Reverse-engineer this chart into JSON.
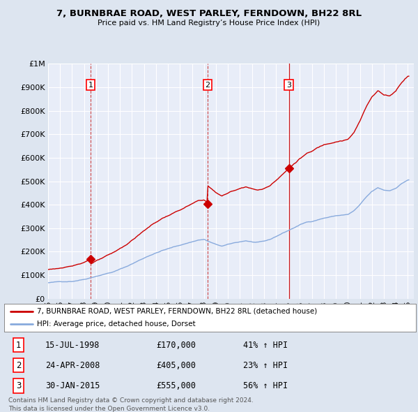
{
  "title": "7, BURNBRAE ROAD, WEST PARLEY, FERNDOWN, BH22 8RL",
  "subtitle": "Price paid vs. HM Land Registry’s House Price Index (HPI)",
  "legend_line1": "7, BURNBRAE ROAD, WEST PARLEY, FERNDOWN, BH22 8RL (detached house)",
  "legend_line2": "HPI: Average price, detached house, Dorset",
  "footer1": "Contains HM Land Registry data © Crown copyright and database right 2024.",
  "footer2": "This data is licensed under the Open Government Licence v3.0.",
  "sale_labels": [
    "1",
    "2",
    "3"
  ],
  "sale_dates": [
    1998.54,
    2008.31,
    2015.08
  ],
  "sale_prices": [
    170000,
    405000,
    555000
  ],
  "sale_info": [
    {
      "num": "1",
      "date": "15-JUL-1998",
      "price": "£170,000",
      "hpi": "41% ↑ HPI"
    },
    {
      "num": "2",
      "date": "24-APR-2008",
      "price": "£405,000",
      "hpi": "23% ↑ HPI"
    },
    {
      "num": "3",
      "date": "30-JAN-2015",
      "price": "£555,000",
      "hpi": "56% ↑ HPI"
    }
  ],
  "background_color": "#dde5f0",
  "plot_bg_color": "#e8edf8",
  "grid_color": "#ffffff",
  "red_color": "#cc0000",
  "blue_color": "#88aadd",
  "dashed_red_color": "#cc3333",
  "xlim": [
    1995.0,
    2025.5
  ],
  "ylim": [
    0,
    1000000
  ],
  "ytick_labels": [
    "£0",
    "£100K",
    "£200K",
    "£300K",
    "£400K",
    "£500K",
    "£600K",
    "£700K",
    "£800K",
    "£900K",
    "£1M"
  ],
  "yticks": [
    0,
    100000,
    200000,
    300000,
    400000,
    500000,
    600000,
    700000,
    800000,
    900000,
    1000000
  ]
}
